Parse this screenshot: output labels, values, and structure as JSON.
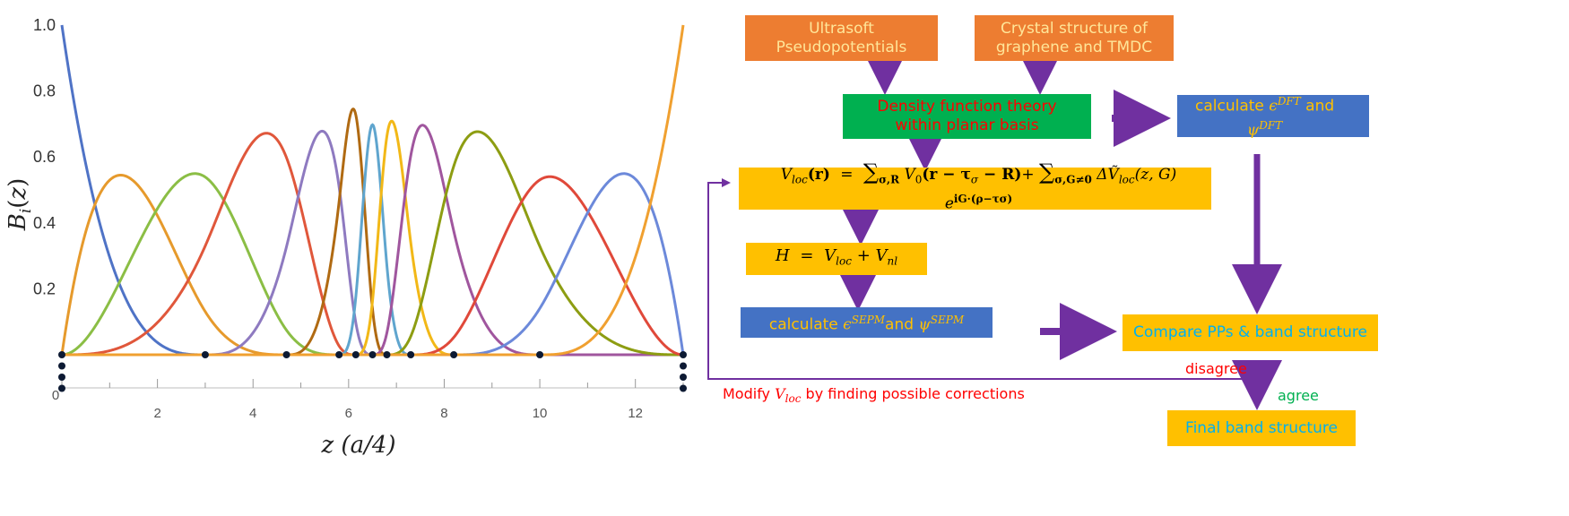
{
  "chart_data": {
    "type": "line",
    "title": "",
    "xlabel": "z (a/4)",
    "ylabel": "B_i(z)",
    "xlim": [
      0,
      13
    ],
    "ylim": [
      0,
      1.0
    ],
    "x_ticks": [
      0,
      2,
      4,
      6,
      8,
      10,
      12
    ],
    "y_ticks": [
      0.2,
      0.4,
      0.6,
      0.8,
      1.0
    ],
    "knots": [
      0,
      0,
      0,
      0,
      3,
      4.7,
      5.8,
      6.15,
      6.5,
      6.8,
      7.3,
      8.2,
      10,
      13,
      13,
      13,
      13
    ],
    "legend": "none",
    "grid": false,
    "series": [
      {
        "color": "#4F73C6",
        "peak_x": 0.0,
        "peak_y": 1.0
      },
      {
        "color": "#E69A2C",
        "peak_x": 1.2,
        "peak_y": 0.555
      },
      {
        "color": "#8BBE45",
        "peak_x": 2.8,
        "peak_y": 0.545
      },
      {
        "color": "#E0573B",
        "peak_x": 4.4,
        "peak_y": 0.655
      },
      {
        "color": "#8E7AC0",
        "peak_x": 5.6,
        "peak_y": 0.7
      },
      {
        "color": "#B06A12",
        "peak_x": 6.15,
        "peak_y": 0.775
      },
      {
        "color": "#5FA5CE",
        "peak_x": 6.45,
        "peak_y": 0.665
      },
      {
        "color": "#F2B817",
        "peak_x": 6.8,
        "peak_y": 0.775
      },
      {
        "color": "#A0569E",
        "peak_x": 7.4,
        "peak_y": 0.7
      },
      {
        "color": "#8D9D12",
        "peak_x": 8.6,
        "peak_y": 0.655
      },
      {
        "color": "#E0493A",
        "peak_x": 10.1,
        "peak_y": 0.545
      },
      {
        "color": "#6C89DA",
        "peak_x": 11.7,
        "peak_y": 0.56
      },
      {
        "color": "#F0A030",
        "peak_x": 13.0,
        "peak_y": 1.0
      }
    ]
  },
  "flowchart": {
    "box_ultrasoft": "Ultrasoft Pseudopotentials",
    "box_crystal": "Crystal structure of graphene and TMDC",
    "box_dft": "Density function theory within planar basis",
    "box_calc_dft_prefix": "calculate ",
    "box_calc_dft_eps": "ϵ",
    "box_calc_dft_eps_sup": "DFT",
    "box_calc_dft_and": "and",
    "box_calc_dft_psi": "ψ",
    "box_calc_dft_psi_sup": "DFT",
    "vloc_equation": {
      "lhs": "V",
      "lhs_sub": "loc",
      "r": "(r)",
      "eq": "=",
      "sum1": "∑",
      "sum1_sub": "σ,R",
      "v0": "V",
      "v0_sub": "0",
      "arg1": "(r − τ",
      "arg1_sub": "σ",
      "arg1_end": " − R)",
      "plus": "+",
      "sum2": "∑",
      "sum2_sub": "σ,G≠0",
      "dv": "ΔṼ",
      "dv_sub": "loc",
      "arg2": "(z, G)",
      "exp": "e",
      "exp_sup": "iG·(ρ−τσ)"
    },
    "hamiltonian": {
      "h": "H",
      "eq": "=",
      "v1": "V",
      "v1_sub": "loc",
      "plus": "+",
      "v2": "V",
      "v2_sub": "nl"
    },
    "box_calc_sepm_prefix": "calculate ",
    "box_calc_sepm_eps": "ϵ",
    "box_calc_sepm_eps_sup": "SEPM",
    "box_calc_sepm_and": "and",
    "box_calc_sepm_psi": "ψ",
    "box_calc_sepm_psi_sup": "SEPM",
    "box_compare": "Compare PPs & band structure",
    "box_final": "Final band structure",
    "label_disagree": "disagree",
    "label_agree": "agree",
    "label_modify_prefix": "Modify ",
    "label_modify_v": "V",
    "label_modify_sub": "loc",
    "label_modify_suffix": " by finding  possible corrections",
    "colors": {
      "arrow": "#7030A0",
      "red_text": "#FF0000",
      "green_text": "#00B050"
    }
  }
}
